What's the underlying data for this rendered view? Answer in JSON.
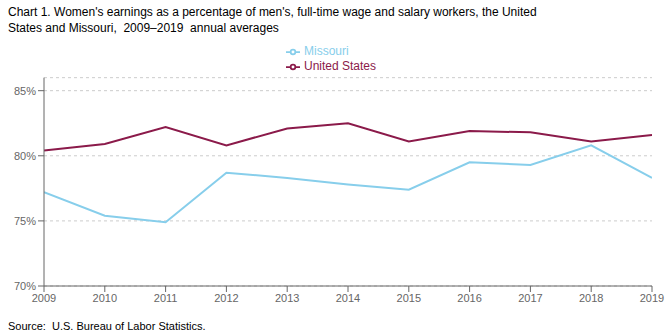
{
  "chart_data": {
    "type": "line",
    "title": "Chart 1. Women's earnings as a percentage of men's, full-time wage and salary workers, the United",
    "subtitle": "States and Missouri,  2009–2019  annual averages",
    "annotations": [
      "Source:  U.S. Bureau of Labor Statistics."
    ],
    "x": [
      2009,
      2010,
      2011,
      2012,
      2013,
      2014,
      2015,
      2016,
      2017,
      2018,
      2019
    ],
    "series": [
      {
        "name": "United States",
        "color": "#8B1A4A",
        "values": [
          80.4,
          80.9,
          82.2,
          80.8,
          82.1,
          82.5,
          81.1,
          81.9,
          81.8,
          81.1,
          81.6
        ]
      },
      {
        "name": "Missouri",
        "color": "#87CEEB",
        "values": [
          77.2,
          75.4,
          74.9,
          78.7,
          78.3,
          77.8,
          77.4,
          79.5,
          79.3,
          80.8,
          78.3
        ]
      }
    ],
    "xlim": [
      2009,
      2019
    ],
    "xticks": [
      2009,
      2010,
      2011,
      2012,
      2013,
      2014,
      2015,
      2016,
      2017,
      2018,
      2019
    ],
    "ylim": [
      70,
      86
    ],
    "yticks": [
      {
        "value": 70,
        "label": "70%"
      },
      {
        "value": 75,
        "label": "75%"
      },
      {
        "value": 80,
        "label": "80%"
      },
      {
        "value": 85,
        "label": "85%"
      }
    ],
    "grid": true,
    "legend": "top"
  }
}
